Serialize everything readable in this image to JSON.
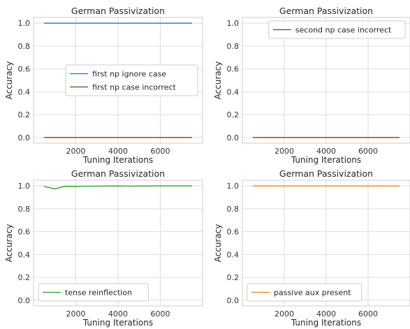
{
  "chart_data": [
    {
      "type": "line",
      "title": "German Passivization",
      "xlabel": "Tuning Iterations",
      "ylabel": "Accuracy",
      "xlim": [
        0,
        8000
      ],
      "ylim": [
        -0.05,
        1.05
      ],
      "xticks": [
        2000,
        4000,
        6000
      ],
      "xtick_labels": [
        "2000",
        "4000",
        "6000"
      ],
      "yticks": [
        0.0,
        0.2,
        0.4,
        0.6,
        0.8,
        1.0
      ],
      "ytick_labels": [
        "0.0",
        "0.2",
        "0.4",
        "0.6",
        "0.8",
        "1.0"
      ],
      "grid": true,
      "legend": "center-right",
      "series": [
        {
          "name": "first np ignore case",
          "color": "#1f77b4",
          "x": [
            500,
            1000,
            1500,
            2000,
            2500,
            3000,
            3500,
            4000,
            4500,
            5000,
            5500,
            6000,
            6500,
            7000,
            7500
          ],
          "y": [
            1.0,
            1.0,
            1.0,
            1.0,
            1.0,
            1.0,
            1.0,
            1.0,
            1.0,
            1.0,
            1.0,
            1.0,
            1.0,
            1.0,
            1.0
          ]
        },
        {
          "name": "first np case incorrect",
          "color": "#8c3b00",
          "x": [
            500,
            1000,
            1500,
            2000,
            2500,
            3000,
            3500,
            4000,
            4500,
            5000,
            5500,
            6000,
            6500,
            7000,
            7500
          ],
          "y": [
            0.0,
            0.0,
            0.0,
            0.0,
            0.0,
            0.0,
            0.0,
            0.0,
            0.0,
            0.0,
            0.0,
            0.0,
            0.0,
            0.0,
            0.0
          ]
        }
      ]
    },
    {
      "type": "line",
      "title": "German Passivization",
      "xlabel": "Tuning Iterations",
      "ylabel": "Accuracy",
      "xlim": [
        0,
        8000
      ],
      "ylim": [
        -0.05,
        1.05
      ],
      "xticks": [
        2000,
        4000,
        6000
      ],
      "xtick_labels": [
        "2000",
        "4000",
        "6000"
      ],
      "yticks": [
        0.0,
        0.2,
        0.4,
        0.6,
        0.8,
        1.0
      ],
      "ytick_labels": [
        "0.0",
        "0.2",
        "0.4",
        "0.6",
        "0.8",
        "1.0"
      ],
      "grid": true,
      "legend": "upper-right",
      "series": [
        {
          "name": "second np case incorrect",
          "color": "#8c3b00",
          "x": [
            500,
            1000,
            1500,
            2000,
            2500,
            3000,
            3500,
            4000,
            4500,
            5000,
            5500,
            6000,
            6500,
            7000,
            7500
          ],
          "y": [
            0.0,
            0.0,
            0.0,
            0.0,
            0.0,
            0.0,
            0.0,
            0.0,
            0.0,
            0.0,
            0.0,
            0.0,
            0.0,
            0.0,
            0.0
          ]
        }
      ]
    },
    {
      "type": "line",
      "title": "German Passivization",
      "xlabel": "Tuning Iterations",
      "ylabel": "Accuracy",
      "xlim": [
        0,
        8000
      ],
      "ylim": [
        -0.05,
        1.05
      ],
      "xticks": [
        2000,
        4000,
        6000
      ],
      "xtick_labels": [
        "2000",
        "4000",
        "6000"
      ],
      "yticks": [
        0.0,
        0.2,
        0.4,
        0.6,
        0.8,
        1.0
      ],
      "ytick_labels": [
        "0.0",
        "0.2",
        "0.4",
        "0.6",
        "0.8",
        "1.0"
      ],
      "grid": true,
      "legend": "lower-left",
      "series": [
        {
          "name": "tense reinflection",
          "color": "#2ca02c",
          "x": [
            500,
            1000,
            1500,
            2000,
            2500,
            3000,
            3500,
            4000,
            4500,
            5000,
            5500,
            6000,
            6500,
            7000,
            7500
          ],
          "y": [
            0.995,
            0.975,
            0.997,
            0.996,
            0.998,
            0.998,
            0.999,
            1.0,
            0.998,
            0.999,
            1.0,
            1.0,
            1.0,
            1.0,
            1.0
          ]
        }
      ]
    },
    {
      "type": "line",
      "title": "German Passivization",
      "xlabel": "Tuning Iterations",
      "ylabel": "Accuracy",
      "xlim": [
        0,
        8000
      ],
      "ylim": [
        -0.05,
        1.05
      ],
      "xticks": [
        2000,
        4000,
        6000
      ],
      "xtick_labels": [
        "2000",
        "4000",
        "6000"
      ],
      "yticks": [
        0.0,
        0.2,
        0.4,
        0.6,
        0.8,
        1.0
      ],
      "ytick_labels": [
        "0.0",
        "0.2",
        "0.4",
        "0.6",
        "0.8",
        "1.0"
      ],
      "grid": true,
      "legend": "lower-left",
      "series": [
        {
          "name": "passive aux present",
          "color": "#ff7f0e",
          "x": [
            500,
            1000,
            1500,
            2000,
            2500,
            3000,
            3500,
            4000,
            4500,
            5000,
            5500,
            6000,
            6500,
            7000,
            7500
          ],
          "y": [
            1.0,
            1.0,
            1.0,
            1.0,
            1.0,
            1.0,
            1.0,
            1.0,
            1.0,
            1.0,
            1.0,
            1.0,
            1.0,
            1.0,
            1.0
          ]
        }
      ]
    }
  ]
}
